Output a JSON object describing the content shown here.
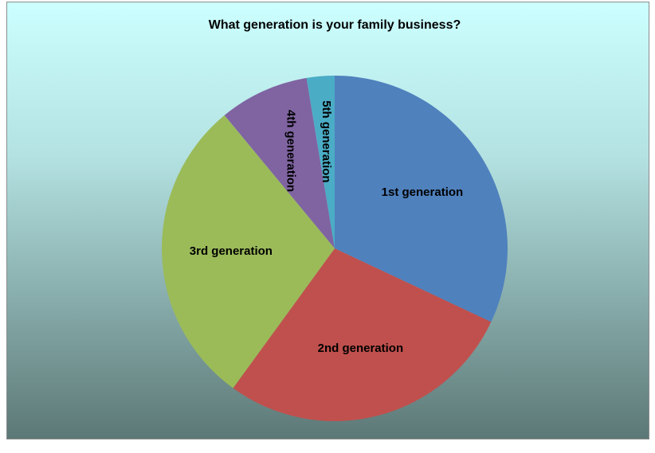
{
  "chart_data": {
    "type": "pie",
    "title": "What generation is your family business?",
    "categories": [
      "1st generation",
      "2nd generation",
      "3rd generation",
      "4th generation",
      "5th generation"
    ],
    "values": [
      32,
      28,
      29,
      8.4,
      2.6
    ],
    "colors": [
      "#4f81bd",
      "#c0504d",
      "#9bbb59",
      "#8064a2",
      "#4bacc6"
    ]
  }
}
